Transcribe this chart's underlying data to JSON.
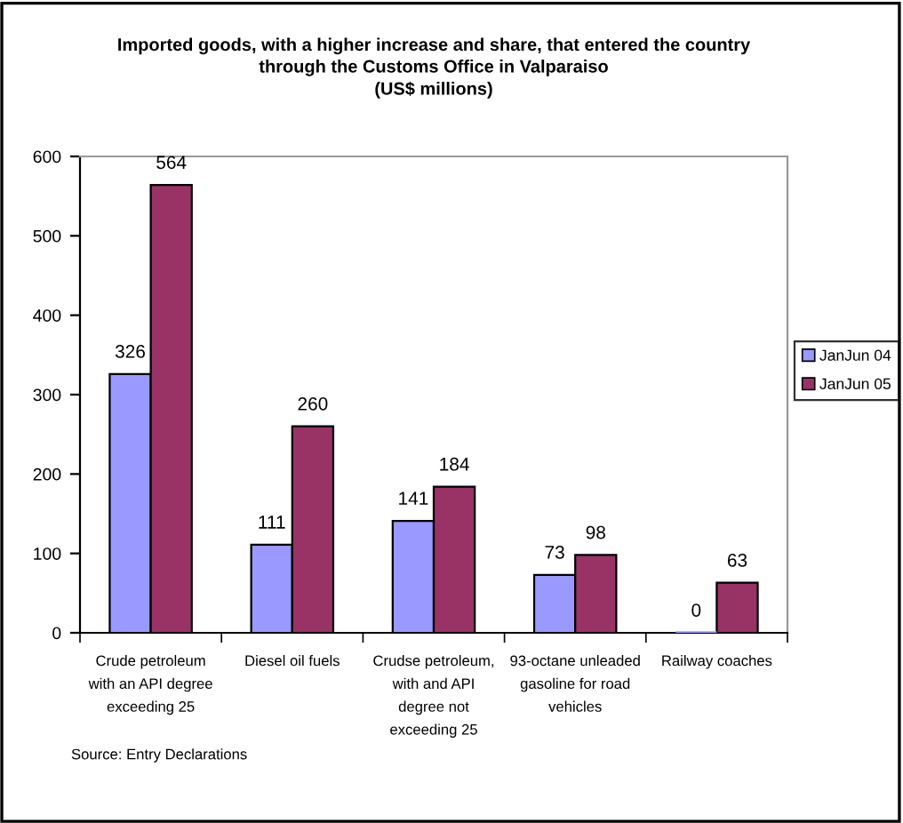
{
  "chart_data": {
    "type": "bar",
    "title": "Imported goods, with a higher increase and share, that entered the country\nthrough the Customs Office in Valparaiso\n(US$ millions)",
    "categories": [
      "Crude petroleum\nwith an API degree\nexceeding 25",
      "Diesel oil fuels",
      "Crudse petroleum,\nwith and API\ndegree not\nexceeding 25",
      "93-octane unleaded\ngasoline for road\nvehicles",
      "Railway coaches"
    ],
    "series": [
      {
        "name": "JanJun 04",
        "color": "#9999ff",
        "values": [
          326,
          111,
          141,
          73,
          0
        ]
      },
      {
        "name": "JanJun 05",
        "color": "#993366",
        "values": [
          564,
          260,
          184,
          98,
          63
        ]
      }
    ],
    "ylim": [
      0,
      600
    ],
    "yticks": [
      0,
      100,
      200,
      300,
      400,
      500,
      600
    ],
    "data_labels": true,
    "legend": "right",
    "grid": false,
    "annotations": [
      "Source: Entry Declarations"
    ]
  }
}
